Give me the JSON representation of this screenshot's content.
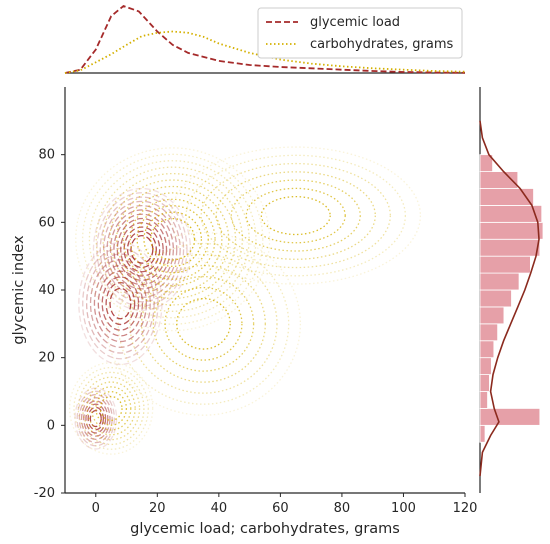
{
  "chart_data": {
    "type": "jointplot-kde",
    "xlabel": "glycemic load; carbohydrates, grams",
    "ylabel": "glycemic index",
    "xlim": [
      -10,
      120
    ],
    "ylim": [
      -20,
      100
    ],
    "x_ticks": [
      0,
      20,
      40,
      60,
      80,
      100,
      120
    ],
    "y_ticks": [
      -20,
      0,
      20,
      40,
      60,
      80
    ],
    "grid": false,
    "legend": {
      "placement": "top-right",
      "entries": [
        "glycemic load",
        "carbohydrates, grams"
      ]
    },
    "series": [
      {
        "name": "glycemic load",
        "color": "#a52a2a",
        "line_style": "dashed",
        "joint_kde_modes": [
          {
            "x": 15,
            "y": 52,
            "sx": 7,
            "sy": 8,
            "w": 1.0
          },
          {
            "x": 8,
            "y": 36,
            "sx": 6,
            "sy": 8,
            "w": 0.6
          },
          {
            "x": 0,
            "y": 2,
            "sx": 3,
            "sy": 4,
            "w": 0.55
          }
        ],
        "marginal_x_density": [
          [
            -10,
            0
          ],
          [
            -5,
            0.05
          ],
          [
            0,
            0.35
          ],
          [
            5,
            0.85
          ],
          [
            9,
            1.0
          ],
          [
            14,
            0.92
          ],
          [
            20,
            0.62
          ],
          [
            25,
            0.42
          ],
          [
            30,
            0.3
          ],
          [
            40,
            0.18
          ],
          [
            50,
            0.12
          ],
          [
            60,
            0.09
          ],
          [
            70,
            0.07
          ],
          [
            80,
            0.05
          ],
          [
            90,
            0.03
          ],
          [
            100,
            0.015
          ],
          [
            110,
            0.008
          ],
          [
            120,
            0.003
          ]
        ]
      },
      {
        "name": "carbohydrates, grams",
        "color": "#d4b000",
        "line_style": "dotted",
        "joint_kde_modes": [
          {
            "x": 25,
            "y": 55,
            "sx": 14,
            "sy": 12,
            "w": 1.0
          },
          {
            "x": 65,
            "y": 62,
            "sx": 18,
            "sy": 9,
            "w": 0.35
          },
          {
            "x": 35,
            "y": 30,
            "sx": 14,
            "sy": 12,
            "w": 0.35
          },
          {
            "x": 5,
            "y": 5,
            "sx": 6,
            "sy": 6,
            "w": 0.45
          }
        ],
        "marginal_x_density": [
          [
            -10,
            0
          ],
          [
            -5,
            0.04
          ],
          [
            0,
            0.16
          ],
          [
            5,
            0.28
          ],
          [
            10,
            0.42
          ],
          [
            15,
            0.55
          ],
          [
            20,
            0.6
          ],
          [
            25,
            0.62
          ],
          [
            30,
            0.6
          ],
          [
            35,
            0.54
          ],
          [
            40,
            0.44
          ],
          [
            50,
            0.3
          ],
          [
            60,
            0.2
          ],
          [
            70,
            0.14
          ],
          [
            80,
            0.1
          ],
          [
            90,
            0.07
          ],
          [
            100,
            0.05
          ],
          [
            110,
            0.03
          ],
          [
            120,
            0.02
          ]
        ]
      }
    ],
    "marginal_y": {
      "color": "#e6a0a8",
      "line_color": "#8b2a1e",
      "histogram": [
        {
          "bin": [
            -5,
            0
          ],
          "value": 0.08
        },
        {
          "bin": [
            0,
            5
          ],
          "value": 0.95
        },
        {
          "bin": [
            5,
            10
          ],
          "value": 0.12
        },
        {
          "bin": [
            10,
            15
          ],
          "value": 0.15
        },
        {
          "bin": [
            15,
            20
          ],
          "value": 0.18
        },
        {
          "bin": [
            20,
            25
          ],
          "value": 0.22
        },
        {
          "bin": [
            25,
            30
          ],
          "value": 0.28
        },
        {
          "bin": [
            30,
            35
          ],
          "value": 0.38
        },
        {
          "bin": [
            35,
            40
          ],
          "value": 0.5
        },
        {
          "bin": [
            40,
            45
          ],
          "value": 0.62
        },
        {
          "bin": [
            45,
            50
          ],
          "value": 0.8
        },
        {
          "bin": [
            50,
            55
          ],
          "value": 0.95
        },
        {
          "bin": [
            55,
            60
          ],
          "value": 1.0
        },
        {
          "bin": [
            60,
            65
          ],
          "value": 0.98
        },
        {
          "bin": [
            65,
            70
          ],
          "value": 0.85
        },
        {
          "bin": [
            70,
            75
          ],
          "value": 0.6
        },
        {
          "bin": [
            75,
            80
          ],
          "value": 0.2
        }
      ],
      "kde": [
        [
          -15,
          0.0
        ],
        [
          -8,
          0.04
        ],
        [
          -3,
          0.18
        ],
        [
          1,
          0.32
        ],
        [
          5,
          0.24
        ],
        [
          10,
          0.18
        ],
        [
          15,
          0.22
        ],
        [
          20,
          0.3
        ],
        [
          25,
          0.4
        ],
        [
          30,
          0.52
        ],
        [
          35,
          0.64
        ],
        [
          40,
          0.76
        ],
        [
          45,
          0.86
        ],
        [
          50,
          0.95
        ],
        [
          55,
          1.0
        ],
        [
          60,
          0.98
        ],
        [
          65,
          0.88
        ],
        [
          70,
          0.68
        ],
        [
          75,
          0.4
        ],
        [
          80,
          0.15
        ],
        [
          85,
          0.04
        ],
        [
          90,
          0.0
        ]
      ]
    }
  }
}
